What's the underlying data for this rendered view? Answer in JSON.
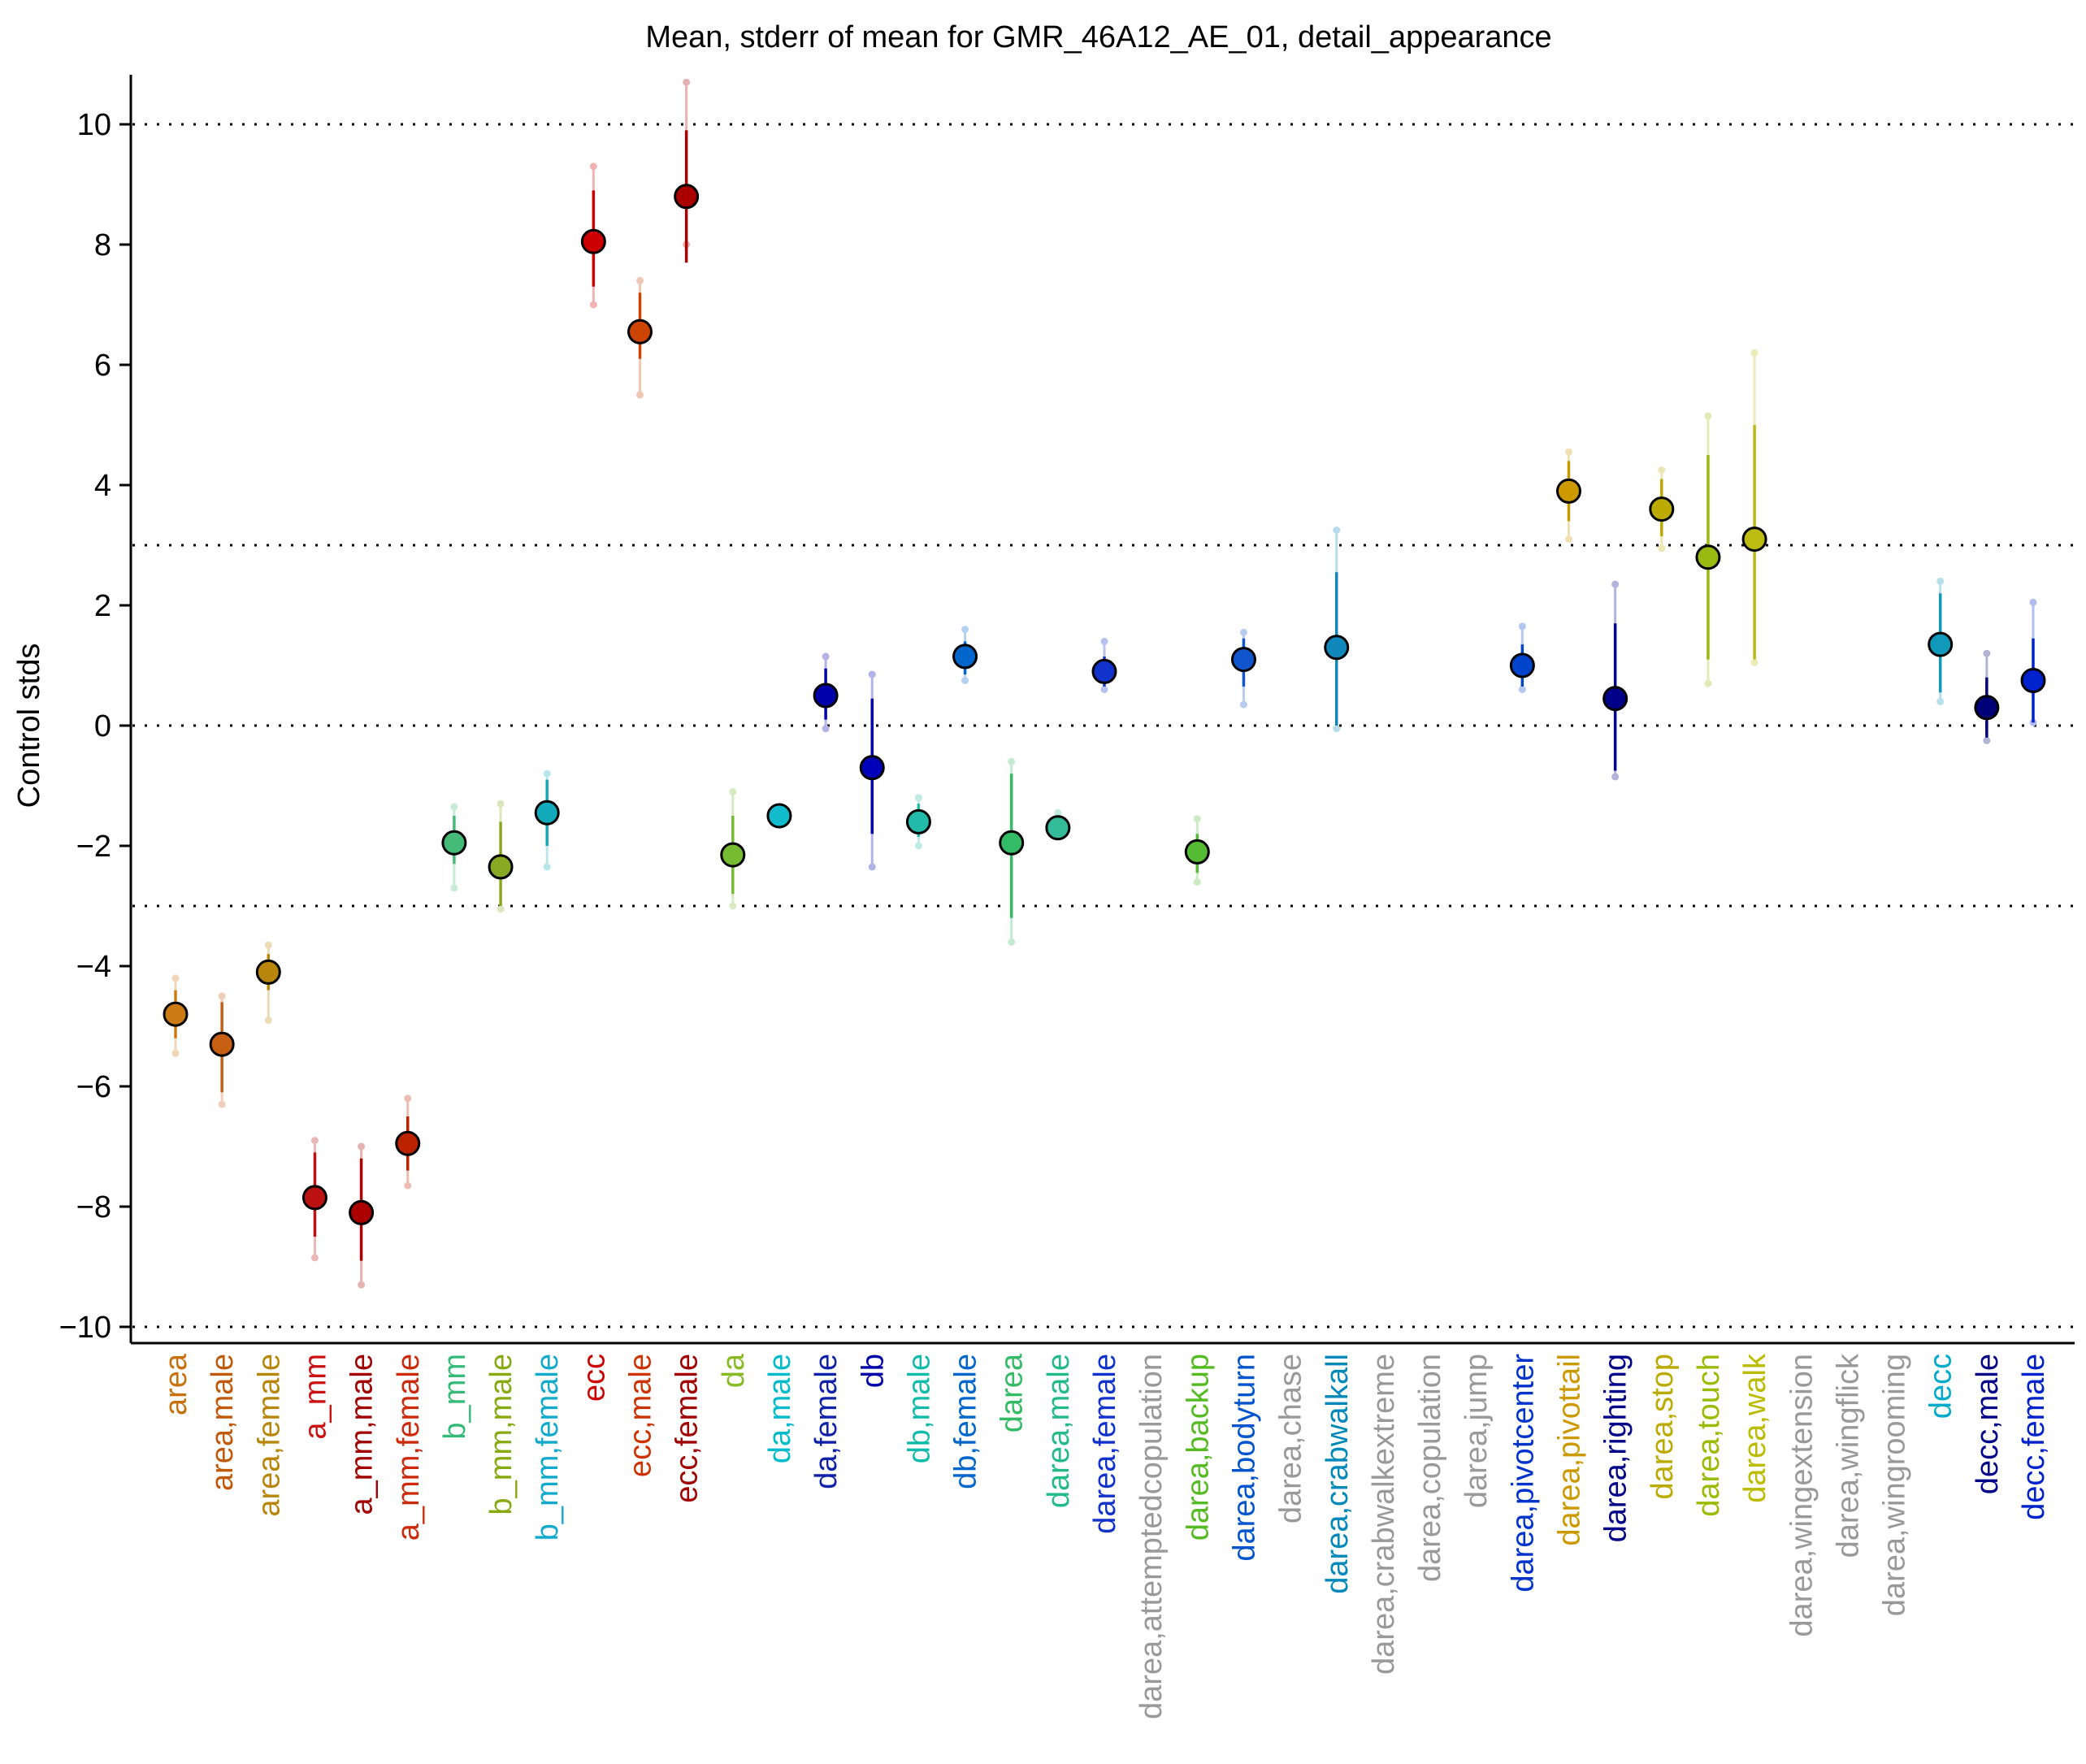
{
  "chart_data": {
    "type": "scatter",
    "title": "Mean, stderr of mean for GMR_46A12_AE_01, detail_appearance",
    "ylabel": "Control stds",
    "xlabel": "",
    "ylim": [
      -10.2,
      10.9
    ],
    "yticks": [
      -10,
      -8,
      -6,
      -4,
      -2,
      0,
      2,
      4,
      6,
      8,
      10
    ],
    "ytick_labels": [
      "−10",
      "−8",
      "−6",
      "−4",
      "−2",
      "0",
      "2",
      "4",
      "6",
      "8",
      "10"
    ],
    "reference_lines": [
      -10,
      -3,
      0,
      3,
      10
    ],
    "grid": false,
    "legend": "none",
    "categories": [
      "area",
      "area,male",
      "area,female",
      "a_mm",
      "a_mm,male",
      "a_mm,female",
      "b_mm",
      "b_mm,male",
      "b_mm,female",
      "ecc",
      "ecc,male",
      "ecc,female",
      "da",
      "da,male",
      "da,female",
      "db",
      "db,male",
      "db,female",
      "darea",
      "darea,male",
      "darea,female",
      "darea,attemptedcopulation",
      "darea,backup",
      "darea,bodyturn",
      "darea,chase",
      "darea,crabwalkall",
      "darea,crabwalkextreme",
      "darea,copulation",
      "darea,jump",
      "darea,pivotcenter",
      "darea,pivottail",
      "darea,righting",
      "darea,stop",
      "darea,touch",
      "darea,walk",
      "darea,wingextension",
      "darea,wingflick",
      "darea,wingrooming",
      "decc",
      "decc,male",
      "decc,female"
    ],
    "label_colors": [
      "#c8700a",
      "#c05a0a",
      "#b8860b",
      "#cc1111",
      "#a00000",
      "#cc2a0a",
      "#33bb77",
      "#88aa11",
      "#11aacc",
      "#cc0000",
      "#cc3300",
      "#a00000",
      "#88bb22",
      "#00bbcc",
      "#1122aa",
      "#0000aa",
      "#11bbaa",
      "#0066cc",
      "#33bb66",
      "#22bb88",
      "#1133cc",
      "#999999",
      "#55bb22",
      "#0055cc",
      "#999999",
      "#0088bb",
      "#999999",
      "#999999",
      "#999999",
      "#0033cc",
      "#cc9900",
      "#000088",
      "#bbaa00",
      "#99bb00",
      "#bbbb00",
      "#999999",
      "#999999",
      "#999999",
      "#00aacc",
      "#000088",
      "#0022cc"
    ],
    "marker_colors": [
      "#cc7a14",
      "#c86014",
      "#b8860b",
      "#bb1111",
      "#aa0000",
      "#bb2200",
      "#44bb77",
      "#88aa22",
      "#11aabb",
      "#cc0000",
      "#cc4400",
      "#aa0000",
      "#77bb33",
      "#11bbcc",
      "#0000aa",
      "#0000bb",
      "#22bbaa",
      "#0066cc",
      "#33bb66",
      "#33bb99",
      "#1133cc",
      null,
      "#55bb33",
      "#1155cc",
      null,
      "#1188bb",
      null,
      null,
      null,
      "#0044cc",
      "#cc9900",
      "#000088",
      "#bbaa00",
      "#99bb11",
      "#bbbb11",
      null,
      null,
      null,
      "#1199bb",
      "#000077",
      "#0022cc"
    ],
    "means": [
      -4.8,
      -5.3,
      -4.1,
      -7.85,
      -8.1,
      -6.95,
      -1.95,
      -2.35,
      -1.45,
      8.05,
      6.55,
      8.8,
      -2.15,
      -1.5,
      0.5,
      -0.7,
      -1.6,
      1.15,
      -1.95,
      -1.7,
      0.9,
      null,
      -2.1,
      1.1,
      null,
      1.3,
      null,
      null,
      null,
      1.0,
      3.9,
      0.45,
      3.6,
      2.8,
      3.1,
      null,
      null,
      null,
      1.35,
      0.3,
      0.75
    ],
    "stderr": [
      [
        -5.2,
        -4.4
      ],
      [
        -6.1,
        -4.6
      ],
      [
        -4.4,
        -3.8
      ],
      [
        -8.5,
        -7.1
      ],
      [
        -8.9,
        -7.2
      ],
      [
        -7.4,
        -6.5
      ],
      [
        -2.3,
        -1.5
      ],
      [
        -3.0,
        -1.6
      ],
      [
        -2.0,
        -0.9
      ],
      [
        7.3,
        8.9
      ],
      [
        6.1,
        7.2
      ],
      [
        7.7,
        9.9
      ],
      [
        -2.8,
        -1.5
      ],
      [
        -1.65,
        -1.4
      ],
      [
        0.1,
        0.95
      ],
      [
        -1.8,
        0.45
      ],
      [
        -1.85,
        -1.3
      ],
      [
        0.85,
        1.4
      ],
      [
        -3.2,
        -0.8
      ],
      [
        -1.8,
        -1.55
      ],
      [
        0.65,
        1.15
      ],
      null,
      [
        -2.45,
        -1.8
      ],
      [
        0.65,
        1.45
      ],
      null,
      [
        0.0,
        2.55
      ],
      null,
      null,
      null,
      [
        0.65,
        1.35
      ],
      [
        3.4,
        4.4
      ],
      [
        -0.75,
        1.7
      ],
      [
        3.15,
        4.1
      ],
      [
        1.1,
        4.5
      ],
      [
        1.1,
        5.0
      ],
      null,
      null,
      null,
      [
        0.55,
        2.2
      ],
      [
        -0.2,
        0.8
      ],
      [
        0.05,
        1.45
      ]
    ],
    "samples": [
      [
        -5.45,
        -4.2
      ],
      [
        -6.3,
        -4.5
      ],
      [
        -4.9,
        -3.65
      ],
      [
        -8.85,
        -6.9
      ],
      [
        -9.3,
        -7.0
      ],
      [
        -7.65,
        -6.2
      ],
      [
        -2.7,
        -1.35
      ],
      [
        -3.05,
        -1.3
      ],
      [
        -2.35,
        -0.8
      ],
      [
        7.0,
        9.3
      ],
      [
        5.5,
        7.4
      ],
      [
        8.0,
        10.7
      ],
      [
        -3.0,
        -1.1
      ],
      [
        -1.6,
        -1.45
      ],
      [
        -0.05,
        1.15
      ],
      [
        -2.35,
        0.85
      ],
      [
        -2.0,
        -1.2
      ],
      [
        0.75,
        1.6
      ],
      [
        -3.6,
        -0.6
      ],
      [
        -1.75,
        -1.45
      ],
      [
        0.6,
        1.4
      ],
      null,
      [
        -2.6,
        -1.55
      ],
      [
        0.35,
        1.55
      ],
      null,
      [
        -0.05,
        3.25
      ],
      null,
      null,
      null,
      [
        0.6,
        1.65
      ],
      [
        3.1,
        4.55
      ],
      [
        -0.85,
        2.35
      ],
      [
        2.95,
        4.25
      ],
      [
        0.7,
        5.15
      ],
      [
        1.05,
        6.2
      ],
      null,
      null,
      null,
      [
        0.4,
        2.4
      ],
      [
        -0.25,
        1.2
      ],
      [
        0.05,
        2.05
      ]
    ]
  }
}
